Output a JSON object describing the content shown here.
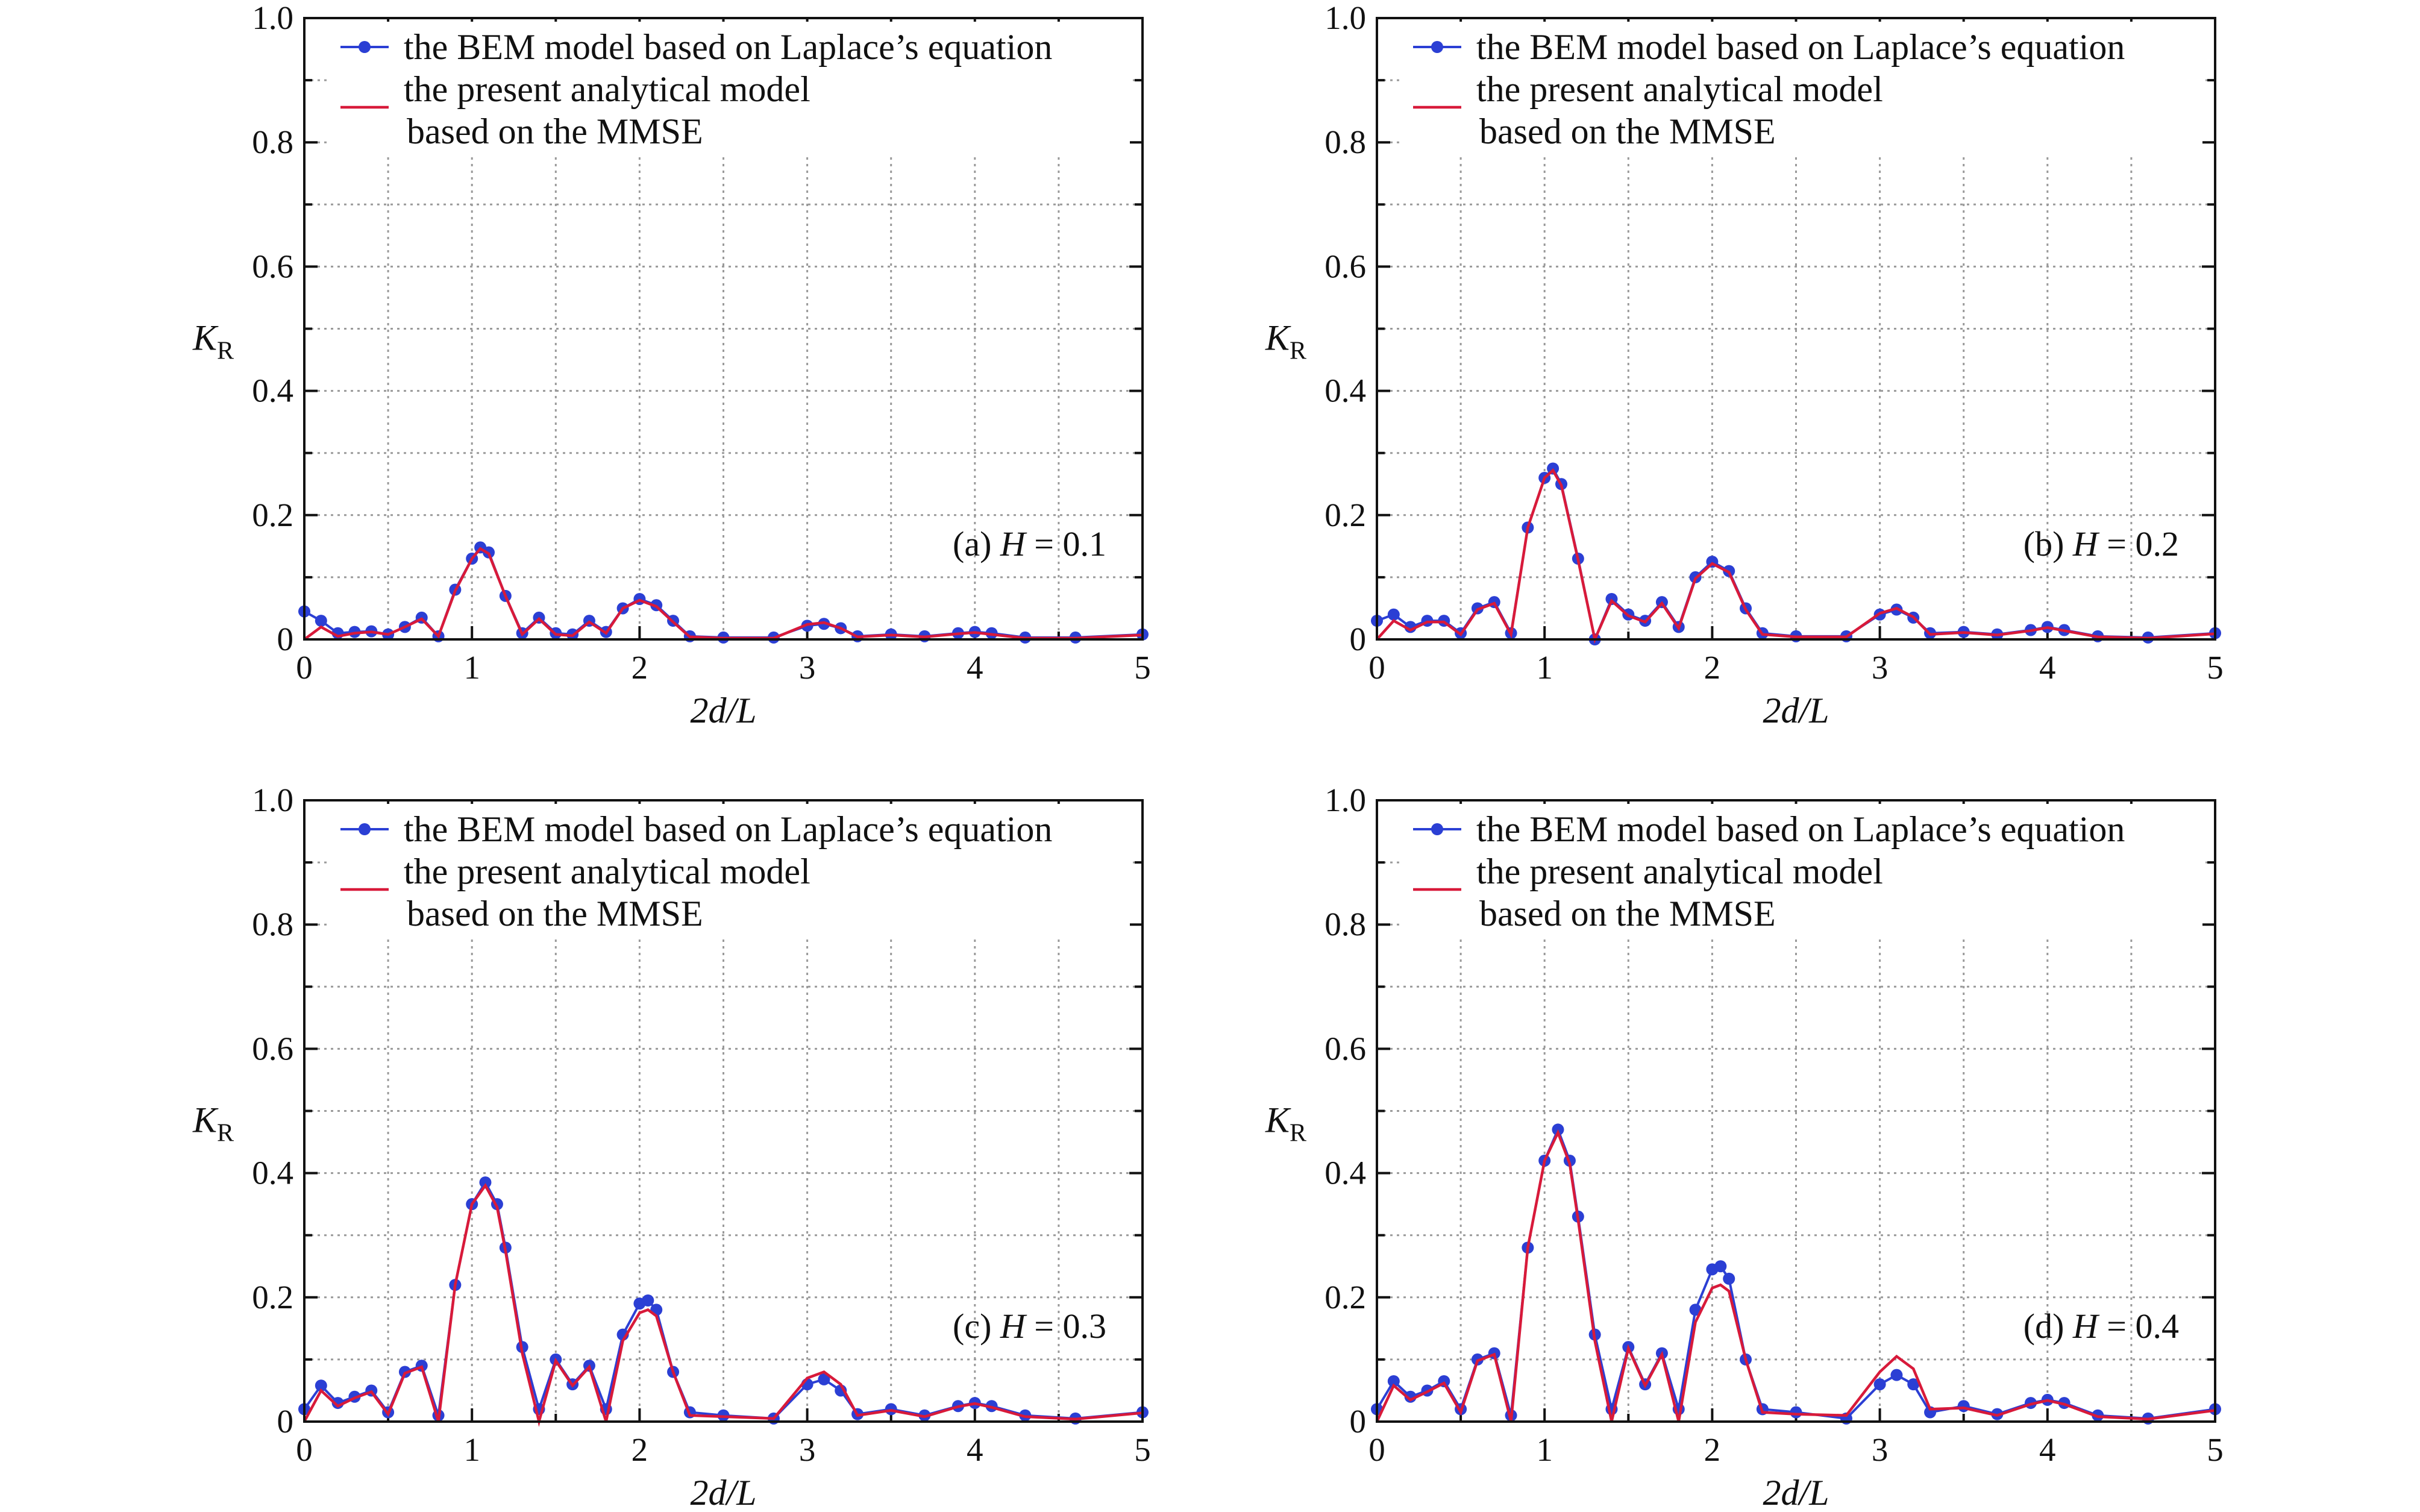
{
  "figure": {
    "x_ticks": [
      "0",
      "1",
      "2",
      "3",
      "4",
      "5"
    ],
    "y_ticks": [
      "0",
      "0.2",
      "0.4",
      "0.6",
      "0.8",
      "1.0"
    ],
    "xlabel": "2d/L",
    "ylabel_main": "K",
    "ylabel_sub": "R",
    "legend": {
      "bem": "the BEM model based on Laplace’s equation",
      "analytic_line1": "the present analytical model",
      "analytic_line2": "based on the MMSE"
    },
    "colors": {
      "bem": "#2b3fd4",
      "analytic": "#d81a3a",
      "grid": "#9a9a9a",
      "axis": "#111111"
    }
  },
  "chart_data": [
    {
      "type": "line",
      "panel_label": "(a) H = 0.1",
      "xlim": [
        0,
        5
      ],
      "ylim": [
        0,
        1.0
      ],
      "grid": true,
      "legend_position": "top-left",
      "series": [
        {
          "name": "the BEM model based on Laplace’s equation",
          "marker": "circle",
          "x": [
            0,
            0.1,
            0.2,
            0.3,
            0.4,
            0.5,
            0.6,
            0.7,
            0.8,
            0.9,
            1.0,
            1.05,
            1.1,
            1.2,
            1.3,
            1.4,
            1.5,
            1.6,
            1.7,
            1.8,
            1.9,
            2.0,
            2.1,
            2.2,
            2.3,
            2.5,
            2.8,
            3.0,
            3.1,
            3.2,
            3.3,
            3.5,
            3.7,
            3.9,
            4.0,
            4.1,
            4.3,
            4.6,
            5.0
          ],
          "y": [
            0.045,
            0.03,
            0.01,
            0.012,
            0.013,
            0.008,
            0.02,
            0.035,
            0.005,
            0.08,
            0.13,
            0.148,
            0.14,
            0.07,
            0.01,
            0.035,
            0.01,
            0.008,
            0.03,
            0.012,
            0.05,
            0.065,
            0.055,
            0.03,
            0.005,
            0.003,
            0.003,
            0.022,
            0.025,
            0.018,
            0.005,
            0.008,
            0.005,
            0.01,
            0.012,
            0.01,
            0.003,
            0.003,
            0.008
          ]
        },
        {
          "name": "the present analytical model based on the MMSE",
          "x": [
            0,
            0.1,
            0.2,
            0.3,
            0.4,
            0.5,
            0.6,
            0.7,
            0.8,
            0.9,
            1.0,
            1.05,
            1.1,
            1.2,
            1.3,
            1.4,
            1.5,
            1.6,
            1.7,
            1.8,
            1.9,
            2.0,
            2.1,
            2.2,
            2.3,
            2.5,
            2.8,
            3.0,
            3.1,
            3.2,
            3.3,
            3.5,
            3.7,
            3.9,
            4.0,
            4.1,
            4.3,
            4.6,
            5.0
          ],
          "y": [
            0.0,
            0.02,
            0.005,
            0.01,
            0.012,
            0.008,
            0.02,
            0.033,
            0.005,
            0.078,
            0.13,
            0.146,
            0.138,
            0.07,
            0.008,
            0.033,
            0.008,
            0.006,
            0.028,
            0.01,
            0.05,
            0.063,
            0.053,
            0.028,
            0.004,
            0.002,
            0.002,
            0.024,
            0.027,
            0.018,
            0.004,
            0.007,
            0.004,
            0.009,
            0.011,
            0.008,
            0.002,
            0.002,
            0.007
          ]
        }
      ]
    },
    {
      "type": "line",
      "panel_label": "(b) H = 0.2",
      "xlim": [
        0,
        5
      ],
      "ylim": [
        0,
        1.0
      ],
      "grid": true,
      "legend_position": "top-left",
      "series": [
        {
          "name": "the BEM model based on Laplace’s equation",
          "marker": "circle",
          "x": [
            0,
            0.1,
            0.2,
            0.3,
            0.4,
            0.5,
            0.6,
            0.7,
            0.8,
            0.9,
            1.0,
            1.05,
            1.1,
            1.2,
            1.3,
            1.4,
            1.5,
            1.6,
            1.7,
            1.8,
            1.9,
            2.0,
            2.1,
            2.2,
            2.3,
            2.5,
            2.8,
            3.0,
            3.1,
            3.2,
            3.3,
            3.5,
            3.7,
            3.9,
            4.0,
            4.1,
            4.3,
            4.6,
            5.0
          ],
          "y": [
            0.03,
            0.04,
            0.02,
            0.03,
            0.03,
            0.01,
            0.05,
            0.06,
            0.01,
            0.18,
            0.26,
            0.275,
            0.25,
            0.13,
            0.0,
            0.065,
            0.04,
            0.03,
            0.06,
            0.02,
            0.1,
            0.125,
            0.11,
            0.05,
            0.01,
            0.005,
            0.005,
            0.04,
            0.048,
            0.035,
            0.01,
            0.012,
            0.008,
            0.015,
            0.02,
            0.015,
            0.005,
            0.003,
            0.01
          ]
        },
        {
          "name": "the present analytical model based on the MMSE",
          "x": [
            0,
            0.1,
            0.2,
            0.3,
            0.4,
            0.5,
            0.6,
            0.7,
            0.8,
            0.9,
            1.0,
            1.05,
            1.1,
            1.2,
            1.3,
            1.4,
            1.5,
            1.6,
            1.7,
            1.8,
            1.9,
            2.0,
            2.1,
            2.2,
            2.3,
            2.5,
            2.8,
            3.0,
            3.1,
            3.2,
            3.3,
            3.5,
            3.7,
            3.9,
            4.0,
            4.1,
            4.3,
            4.6,
            5.0
          ],
          "y": [
            0.0,
            0.03,
            0.015,
            0.028,
            0.028,
            0.008,
            0.048,
            0.058,
            0.008,
            0.18,
            0.26,
            0.272,
            0.248,
            0.128,
            0.0,
            0.062,
            0.038,
            0.028,
            0.058,
            0.018,
            0.098,
            0.122,
            0.108,
            0.048,
            0.008,
            0.004,
            0.004,
            0.042,
            0.05,
            0.036,
            0.008,
            0.011,
            0.007,
            0.014,
            0.019,
            0.014,
            0.004,
            0.002,
            0.009
          ]
        }
      ]
    },
    {
      "type": "line",
      "panel_label": "(c) H = 0.3",
      "xlim": [
        0,
        5
      ],
      "ylim": [
        0,
        1.0
      ],
      "grid": true,
      "legend_position": "top-left",
      "series": [
        {
          "name": "the BEM model based on Laplace’s equation",
          "marker": "circle",
          "x": [
            0,
            0.1,
            0.2,
            0.3,
            0.4,
            0.5,
            0.6,
            0.7,
            0.8,
            0.9,
            1.0,
            1.08,
            1.15,
            1.2,
            1.3,
            1.4,
            1.5,
            1.6,
            1.7,
            1.8,
            1.9,
            2.0,
            2.05,
            2.1,
            2.2,
            2.3,
            2.5,
            2.8,
            3.0,
            3.1,
            3.2,
            3.3,
            3.5,
            3.7,
            3.9,
            4.0,
            4.1,
            4.3,
            4.6,
            5.0
          ],
          "y": [
            0.02,
            0.058,
            0.03,
            0.04,
            0.05,
            0.015,
            0.08,
            0.09,
            0.01,
            0.22,
            0.35,
            0.385,
            0.35,
            0.28,
            0.12,
            0.02,
            0.1,
            0.06,
            0.09,
            0.02,
            0.14,
            0.19,
            0.195,
            0.18,
            0.08,
            0.015,
            0.01,
            0.005,
            0.06,
            0.068,
            0.05,
            0.012,
            0.02,
            0.01,
            0.025,
            0.03,
            0.025,
            0.01,
            0.005,
            0.015
          ]
        },
        {
          "name": "the present analytical model based on the MMSE",
          "x": [
            0,
            0.1,
            0.2,
            0.3,
            0.4,
            0.5,
            0.6,
            0.7,
            0.8,
            0.9,
            1.0,
            1.08,
            1.15,
            1.2,
            1.3,
            1.4,
            1.5,
            1.6,
            1.7,
            1.8,
            1.9,
            2.0,
            2.05,
            2.1,
            2.2,
            2.3,
            2.5,
            2.8,
            3.0,
            3.1,
            3.2,
            3.3,
            3.5,
            3.7,
            3.9,
            4.0,
            4.1,
            4.3,
            4.6,
            5.0
          ],
          "y": [
            0.0,
            0.05,
            0.025,
            0.038,
            0.048,
            0.012,
            0.078,
            0.088,
            0.0,
            0.22,
            0.35,
            0.38,
            0.345,
            0.275,
            0.11,
            0.0,
            0.098,
            0.058,
            0.088,
            0.0,
            0.13,
            0.175,
            0.18,
            0.17,
            0.08,
            0.01,
            0.008,
            0.005,
            0.07,
            0.08,
            0.06,
            0.01,
            0.018,
            0.008,
            0.024,
            0.029,
            0.023,
            0.008,
            0.004,
            0.014
          ]
        }
      ]
    },
    {
      "type": "line",
      "panel_label": "(d) H = 0.4",
      "xlim": [
        0,
        5
      ],
      "ylim": [
        0,
        1.0
      ],
      "grid": true,
      "legend_position": "top-left",
      "series": [
        {
          "name": "the BEM model based on Laplace’s equation",
          "marker": "circle",
          "x": [
            0,
            0.1,
            0.2,
            0.3,
            0.4,
            0.5,
            0.6,
            0.7,
            0.8,
            0.9,
            1.0,
            1.08,
            1.15,
            1.2,
            1.3,
            1.4,
            1.5,
            1.6,
            1.7,
            1.8,
            1.9,
            2.0,
            2.05,
            2.1,
            2.2,
            2.3,
            2.5,
            2.8,
            3.0,
            3.1,
            3.2,
            3.3,
            3.5,
            3.7,
            3.9,
            4.0,
            4.1,
            4.3,
            4.6,
            5.0
          ],
          "y": [
            0.02,
            0.065,
            0.04,
            0.05,
            0.065,
            0.02,
            0.1,
            0.11,
            0.01,
            0.28,
            0.42,
            0.47,
            0.42,
            0.33,
            0.14,
            0.02,
            0.12,
            0.06,
            0.11,
            0.02,
            0.18,
            0.245,
            0.25,
            0.23,
            0.1,
            0.02,
            0.015,
            0.005,
            0.06,
            0.075,
            0.06,
            0.015,
            0.025,
            0.012,
            0.03,
            0.035,
            0.03,
            0.01,
            0.005,
            0.02
          ]
        },
        {
          "name": "the present analytical model based on the MMSE",
          "x": [
            0,
            0.1,
            0.2,
            0.3,
            0.4,
            0.5,
            0.6,
            0.7,
            0.8,
            0.9,
            1.0,
            1.08,
            1.15,
            1.2,
            1.3,
            1.4,
            1.5,
            1.6,
            1.7,
            1.8,
            1.9,
            2.0,
            2.05,
            2.1,
            2.2,
            2.3,
            2.5,
            2.8,
            3.0,
            3.1,
            3.2,
            3.3,
            3.5,
            3.7,
            3.9,
            4.0,
            4.1,
            4.3,
            4.6,
            5.0
          ],
          "y": [
            0.0,
            0.058,
            0.035,
            0.048,
            0.062,
            0.015,
            0.098,
            0.108,
            0.0,
            0.28,
            0.42,
            0.465,
            0.415,
            0.325,
            0.13,
            0.0,
            0.118,
            0.058,
            0.108,
            0.0,
            0.16,
            0.215,
            0.22,
            0.21,
            0.1,
            0.015,
            0.012,
            0.01,
            0.08,
            0.105,
            0.085,
            0.02,
            0.022,
            0.01,
            0.028,
            0.034,
            0.028,
            0.008,
            0.004,
            0.018
          ]
        }
      ]
    }
  ]
}
